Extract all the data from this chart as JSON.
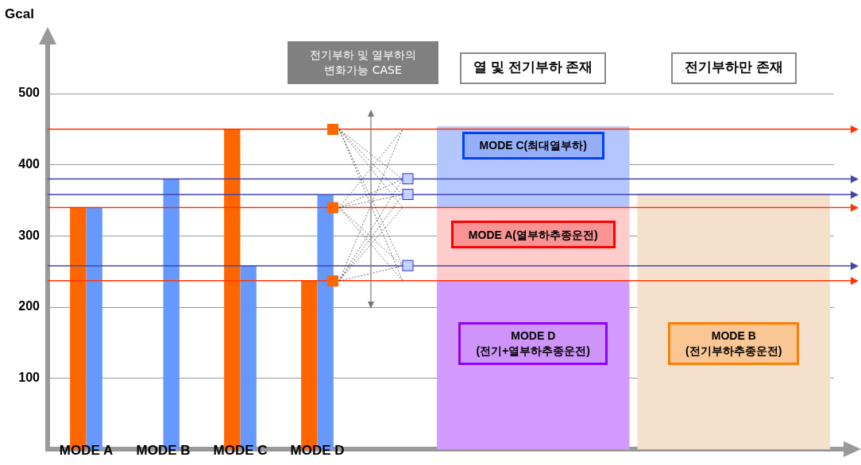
{
  "chart_data": [
    {
      "type": "bar",
      "ylabel": "Gcal",
      "categories": [
        "MODE A",
        "MODE B",
        "MODE C",
        "MODE D",
        null
      ],
      "series": [
        {
          "color": "#ff6600",
          "values": [
            340,
            null,
            450,
            237,
            null
          ]
        },
        {
          "color": "#6699ff",
          "values": [
            340,
            380,
            258,
            358,
            null
          ]
        }
      ],
      "ylim": [
        0,
        500
      ],
      "yticks": [
        100,
        200,
        300,
        400,
        500
      ],
      "grid": "y",
      "legend": false,
      "ref_lines": [
        {
          "axis": "y",
          "value": 450,
          "color": "#ff3300"
        },
        {
          "axis": "y",
          "value": 380,
          "color": "#4444aa"
        },
        {
          "axis": "y",
          "value": 358,
          "color": "#4444aa"
        },
        {
          "axis": "y",
          "value": 340,
          "color": "#ff3300"
        },
        {
          "axis": "y",
          "value": 258,
          "color": "#4444aa"
        },
        {
          "axis": "y",
          "value": 237,
          "color": "#ff3300"
        }
      ],
      "annotations": [
        "전기부하 및 열부하의\n변화가능 CASE"
      ]
    },
    {
      "type": "bar",
      "stacked": true,
      "categories": [
        "열 및 전기부하 존재",
        "전기부하만 존재"
      ],
      "series": [
        {
          "color": "#d49bff",
          "values": [
            237,
            null
          ]
        },
        {
          "color": "#ffcccc",
          "values": [
            103,
            null
          ]
        },
        {
          "color": "#b3c6ff",
          "values": [
            114,
            null
          ]
        },
        {
          "color": "#f5e0cc",
          "values": [
            null,
            360
          ]
        }
      ],
      "ylim": [
        0,
        500
      ],
      "yticks": [
        100,
        200,
        300,
        400,
        500
      ],
      "grid": "y",
      "legend": false,
      "tick_labels": "x",
      "ref_lines": [
        {
          "axis": "y",
          "value": 450,
          "color": "#ff3300"
        },
        {
          "axis": "y",
          "value": 380,
          "color": "#4444aa"
        },
        {
          "axis": "y",
          "value": 358,
          "color": "#4444aa"
        },
        {
          "axis": "y",
          "value": 340,
          "color": "#ff3300"
        },
        {
          "axis": "y",
          "value": 258,
          "color": "#4444aa"
        },
        {
          "axis": "y",
          "value": 237,
          "color": "#ff3300"
        }
      ],
      "annotations": [
        "MODE C(최대열부하)",
        "MODE A(열부하추종운전)",
        "MODE D\n(전기+열부하추종운전)",
        "MODE B\n(전기부하추종운전)"
      ]
    }
  ]
}
